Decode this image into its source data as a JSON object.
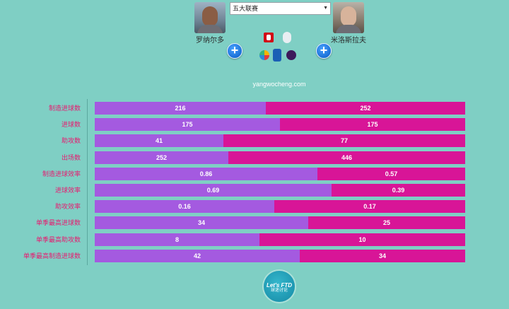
{
  "header": {
    "player_left": {
      "name": "罗纳尔多"
    },
    "player_right": {
      "name": "米洛斯拉夫"
    },
    "league_select": {
      "value": "五大联赛"
    },
    "site_label": "yangwocheng.com"
  },
  "compare": {
    "rows": [
      {
        "label": "制造进球数",
        "left": 216,
        "right": 252
      },
      {
        "label": "进球数",
        "left": 175,
        "right": 175
      },
      {
        "label": "助攻数",
        "left": 41,
        "right": 77
      },
      {
        "label": "出场数",
        "left": 252,
        "right": 446
      },
      {
        "label": "制造进球效率",
        "left": 0.86,
        "right": 0.57
      },
      {
        "label": "进球效率",
        "left": 0.69,
        "right": 0.39
      },
      {
        "label": "助攻效率",
        "left": 0.16,
        "right": 0.17
      },
      {
        "label": "单季最高进球数",
        "left": 34,
        "right": 25
      },
      {
        "label": "单季最高助攻数",
        "left": 8,
        "right": 10
      },
      {
        "label": "单季最高制造进球数",
        "left": 42,
        "right": 34
      }
    ]
  },
  "footer": {
    "brand_line1": "Let's FTD",
    "brand_line2": "球迷讨论"
  },
  "colors": {
    "left_bar": "#a45ae0",
    "right_bar": "#d81597",
    "label": "#e8196f"
  },
  "icons": {
    "add": "plus-circle-icon",
    "leagues": [
      "bundesliga-logo",
      "ligue1-logo",
      "laliga-logo",
      "seriea-logo",
      "premier-league-logo"
    ]
  }
}
